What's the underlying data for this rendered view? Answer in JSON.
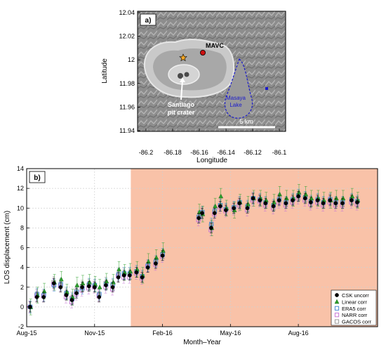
{
  "panel_a": {
    "label": "a)",
    "xlabel": "Longitude",
    "ylabel": "Latitude",
    "xticks": [
      "-86.2",
      "-86.18",
      "-86.16",
      "-86.14",
      "-86.12",
      "-86.1"
    ],
    "yticks": [
      "12.04",
      "12.02",
      "12",
      "11.98",
      "11.96",
      "11.94"
    ],
    "annotations": {
      "mavc": "MAVC",
      "lake_line1": "Masaya",
      "lake_line2": "Lake",
      "crater_line1": "Santiago",
      "crater_line2": "pit crater",
      "scale": "5 km"
    },
    "colors": {
      "mavc_marker": "#cc1111",
      "star": "#f5a623",
      "lake": "#1a1acc",
      "arrow": "#ffffff"
    }
  },
  "chart_data": {
    "type": "scatter",
    "panel_label": "b)",
    "xlabel": "Month–Year",
    "ylabel": "LOS displacement (cm)",
    "xticks": [
      {
        "label": "Aug-15",
        "month": 0
      },
      {
        "label": "Nov-15",
        "month": 3
      },
      {
        "label": "Feb-16",
        "month": 6
      },
      {
        "label": "May-16",
        "month": 9
      },
      {
        "label": "Aug-16",
        "month": 12
      }
    ],
    "xlim_months": [
      0,
      15.5
    ],
    "ylim": [
      -2,
      14
    ],
    "yticks": [
      -2,
      0,
      2,
      4,
      6,
      8,
      10,
      12,
      14
    ],
    "grid": true,
    "shaded_region": {
      "start_month": 4.6,
      "end_month": 15.5,
      "color": "#f9c2a8"
    },
    "legend": {
      "placement": "bottom-right",
      "entries": [
        {
          "label": "CSK uncorr",
          "marker": "circle",
          "color": "#000000"
        },
        {
          "label": "Linear corr",
          "marker": "triangle",
          "color": "#2ca02c"
        },
        {
          "label": "ERA5 corr",
          "marker": "square",
          "color": "#4a8cd6"
        },
        {
          "label": "NARR corr",
          "marker": "square",
          "color": "#c879d6"
        },
        {
          "label": "GACOS corr",
          "marker": "square",
          "color": "#9a9a9a"
        }
      ]
    },
    "dates_months": [
      0.15,
      0.45,
      0.75,
      1.2,
      1.5,
      1.75,
      2.0,
      2.2,
      2.45,
      2.75,
      3.0,
      3.2,
      3.5,
      3.8,
      4.05,
      4.3,
      4.55,
      4.85,
      5.1,
      5.35,
      5.7,
      6.0,
      7.6,
      7.75,
      8.15,
      8.3,
      8.55,
      8.8,
      9.15,
      9.4,
      9.75,
      10.0,
      10.3,
      10.55,
      10.9,
      11.15,
      11.45,
      11.75,
      12.0,
      12.3,
      12.55,
      12.85,
      13.1,
      13.4,
      13.65,
      13.95,
      14.35,
      14.6
    ],
    "series": [
      {
        "name": "CSK uncorr",
        "values": [
          0.0,
          1.0,
          1.0,
          2.4,
          2.0,
          1.2,
          0.7,
          1.4,
          2.0,
          2.1,
          2.0,
          1.0,
          2.2,
          2.0,
          3.0,
          3.2,
          3.2,
          3.5,
          3.0,
          4.0,
          4.4,
          5.2,
          9.0,
          9.5,
          8.0,
          9.5,
          10.2,
          9.8,
          10.0,
          10.5,
          10.0,
          11.0,
          10.8,
          10.5,
          10.2,
          10.8,
          10.5,
          10.8,
          11.2,
          11.0,
          10.6,
          10.8,
          10.5,
          10.8,
          10.5,
          10.5,
          10.8,
          10.6
        ]
      },
      {
        "name": "Linear corr",
        "values": [
          0.0,
          1.2,
          1.6,
          2.5,
          2.8,
          1.5,
          1.0,
          2.2,
          2.4,
          2.5,
          2.3,
          2.0,
          2.6,
          2.5,
          3.8,
          3.5,
          3.6,
          3.8,
          3.2,
          4.6,
          5.0,
          5.7,
          9.6,
          9.4,
          8.0,
          10.2,
          11.2,
          10.0,
          9.8,
          10.6,
          10.4,
          11.0,
          11.0,
          10.8,
          10.6,
          11.4,
          11.0,
          11.0,
          11.6,
          11.4,
          11.0,
          11.0,
          10.8,
          10.8,
          11.0,
          11.0,
          11.2,
          10.8
        ]
      },
      {
        "name": "ERA5 corr",
        "values": [
          0.0,
          1.3,
          1.2,
          2.2,
          2.3,
          1.4,
          0.8,
          1.5,
          1.9,
          2.3,
          2.2,
          1.3,
          2.3,
          2.3,
          3.3,
          3.4,
          3.4,
          3.6,
          3.1,
          4.2,
          4.6,
          5.3,
          9.1,
          9.6,
          8.4,
          9.7,
          10.3,
          9.9,
          10.1,
          10.6,
          10.2,
          11.0,
          10.9,
          10.6,
          10.3,
          10.9,
          10.6,
          10.9,
          11.3,
          11.1,
          10.7,
          10.9,
          10.6,
          10.9,
          10.6,
          10.6,
          10.9,
          10.7
        ]
      },
      {
        "name": "NARR corr",
        "values": [
          0.0,
          1.1,
          1.1,
          2.3,
          2.1,
          1.0,
          0.5,
          1.3,
          1.7,
          1.9,
          2.0,
          1.1,
          2.0,
          1.8,
          3.1,
          3.0,
          3.0,
          3.4,
          2.9,
          4.1,
          4.3,
          5.1,
          8.8,
          9.4,
          7.8,
          9.4,
          10.1,
          9.7,
          9.9,
          10.3,
          9.8,
          10.8,
          10.7,
          10.3,
          10.0,
          10.6,
          10.3,
          10.6,
          11.0,
          10.8,
          10.4,
          10.6,
          10.3,
          10.6,
          10.3,
          10.3,
          10.6,
          10.4
        ]
      },
      {
        "name": "GACOS corr",
        "values": [
          0.0,
          1.2,
          1.1,
          2.5,
          2.2,
          1.3,
          0.9,
          1.6,
          2.1,
          2.2,
          2.1,
          1.2,
          2.4,
          2.2,
          3.2,
          3.3,
          3.3,
          3.6,
          3.1,
          4.1,
          4.5,
          5.3,
          9.1,
          9.5,
          8.2,
          9.6,
          10.3,
          9.9,
          10.0,
          10.5,
          10.1,
          11.0,
          10.8,
          10.5,
          10.2,
          10.8,
          10.5,
          10.8,
          11.2,
          11.0,
          10.6,
          10.8,
          10.5,
          10.8,
          10.5,
          10.5,
          10.8,
          10.6
        ]
      }
    ]
  }
}
